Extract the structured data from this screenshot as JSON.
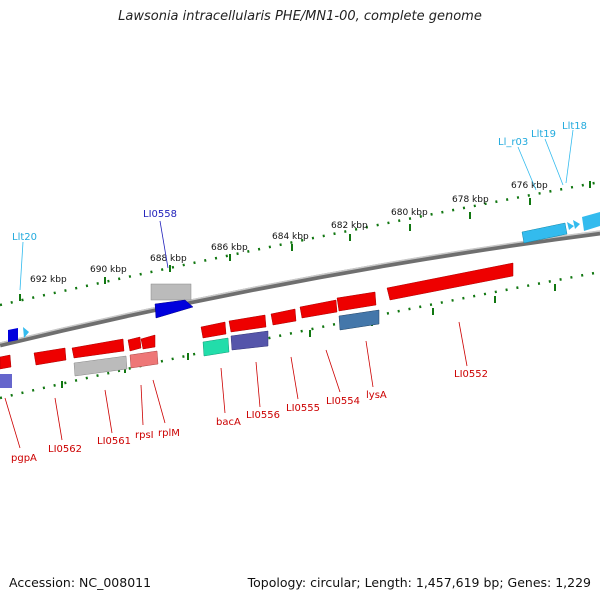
{
  "title": "Lawsonia intracellularis PHE/MN1-00, complete genome",
  "footer": {
    "accession": "Accession: NC_008011",
    "summary": "Topology: circular; Length: 1,457,619 bp; Genes: 1,229"
  },
  "scale_labels": [
    "692 kbp",
    "690 kbp",
    "688 kbp",
    "686 kbp",
    "684 kbp",
    "682 kbp",
    "680 kbp",
    "678 kbp",
    "676 kbp"
  ],
  "gene_labels": {
    "llt20": "Llt20",
    "li0558": "LI0558",
    "ll_r03": "Ll_r03",
    "llt19": "Llt19",
    "llt18": "Llt18",
    "pgpa": "pgpA",
    "li0562": "LI0562",
    "li0561": "LI0561",
    "rpsl": "rpsI",
    "rplm": "rplM",
    "baca": "bacA",
    "li0556": "LI0556",
    "li0555": "LI0555",
    "li0554": "LI0554",
    "lysa": "lysA",
    "li0552": "LI0552"
  },
  "colors": {
    "cds": "#ee0000",
    "rna": "#33bbee",
    "ribosomal": "#ee7777",
    "ticks": "#117711",
    "backbone": "#777777"
  }
}
